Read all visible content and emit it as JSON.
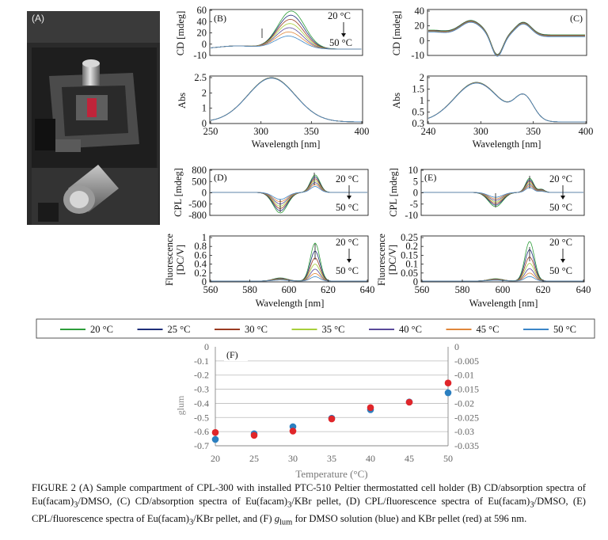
{
  "photo": {
    "label": "(A)"
  },
  "panels": {
    "B": {
      "label": "(B)",
      "cd_ylabel": "CD [mdeg]",
      "abs_ylabel": "Abs",
      "xlabel": "Wavelength [nm]",
      "cd_ticks": [
        "60",
        "40",
        "20",
        "0",
        "-10"
      ],
      "abs_ticks": [
        "2.5",
        "2",
        "1",
        "0"
      ],
      "x_ticks": [
        "250",
        "300",
        "350",
        "400"
      ],
      "temp_top": "20 °C",
      "temp_bottom": "50 °C"
    },
    "C": {
      "label": "(C)",
      "cd_ylabel": "CD [mdeg]",
      "abs_ylabel": "Abs",
      "xlabel": "Wavelength [nm]",
      "cd_ticks": [
        "40",
        "20",
        "0",
        "-10"
      ],
      "abs_ticks": [
        "2",
        "1.5",
        "1",
        "0.5",
        "0.3"
      ],
      "x_ticks": [
        "240",
        "300",
        "350",
        "400"
      ]
    },
    "D": {
      "label": "(D)",
      "cpl_ylabel": "CPL [mdeg]",
      "fl_ylabel_1": "Fluorescence",
      "fl_ylabel_2": "[DC/V]",
      "xlabel": "Wavelength [nm]",
      "cpl_ticks": [
        "800",
        "500",
        "0",
        "-500",
        "-800"
      ],
      "fl_ticks": [
        "1",
        "0.8",
        "0.6",
        "0.4",
        "0.2",
        "0"
      ],
      "x_ticks": [
        "560",
        "580",
        "600",
        "620",
        "640"
      ],
      "temp_top": "20 °C",
      "temp_bottom": "50 °C"
    },
    "E": {
      "label": "(E)",
      "cpl_ylabel": "CPL [mdeg]",
      "fl_ylabel_1": "Fluorescence",
      "fl_ylabel_2": "[DC/V]",
      "xlabel": "Wavelength [nm]",
      "cpl_ticks": [
        "10",
        "5",
        "0",
        "-5",
        "-10"
      ],
      "fl_ticks": [
        "0.25",
        "0.2",
        "0.15",
        "0.1",
        "0.05",
        "0"
      ],
      "x_ticks": [
        "560",
        "580",
        "600",
        "620",
        "640"
      ],
      "temp_top": "20 °C",
      "temp_bottom": "50 °C"
    }
  },
  "legend": [
    {
      "label": "20 °C",
      "color": "#2e9e3a"
    },
    {
      "label": "25 °C",
      "color": "#1f2f7a"
    },
    {
      "label": "30 °C",
      "color": "#9a3b22"
    },
    {
      "label": "35 °C",
      "color": "#a8cf3c"
    },
    {
      "label": "40 °C",
      "color": "#5a4a9a"
    },
    {
      "label": "45 °C",
      "color": "#e0873a"
    },
    {
      "label": "50 °C",
      "color": "#3b86c8"
    }
  ],
  "chart_data": {
    "type": "scatter",
    "label": "(F)",
    "xlabel": "Temperature (°C)",
    "ylabel": "glum",
    "x": [
      20,
      25,
      30,
      35,
      40,
      45,
      50
    ],
    "xlim": [
      20,
      50
    ],
    "ylim_left": [
      -0.7,
      0
    ],
    "ylim_right": [
      -0.035,
      0
    ],
    "x_ticks": [
      "20",
      "25",
      "30",
      "35",
      "40",
      "45",
      "50"
    ],
    "left_ticks": [
      "0",
      "-0.1",
      "-0.2",
      "-0.3",
      "-0.4",
      "-0.5",
      "-0.6",
      "-0.7"
    ],
    "right_ticks": [
      "0",
      "-0.005",
      "-0.01",
      "-0.015",
      "-0.02",
      "-0.025",
      "-0.03",
      "-0.035"
    ],
    "grid": true,
    "series": [
      {
        "axis": "left",
        "color": "#2b7fc0",
        "values": [
          -0.655,
          -0.615,
          -0.565,
          -0.505,
          -0.445,
          -0.39,
          -0.325
        ]
      },
      {
        "axis": "right",
        "color": "#e0262a",
        "values": [
          -0.0303,
          -0.0313,
          -0.0298,
          -0.0255,
          -0.0215,
          -0.0196,
          -0.0128
        ]
      }
    ]
  },
  "caption": {
    "text_1": "FIGURE 2 (A) Sample compartment of CPL-300 with installed PTC-510 Peltier thermostatted cell holder (B) CD/absorption spectra of Eu(facam)",
    "sub3a": "3",
    "text_2": "/DMSO, (C) CD/absorption spectra of Eu(facam)",
    "sub3b": "3",
    "text_3": "/KBr pellet, (D) CPL/fluorescence spectra of Eu(facam)",
    "sub3c": "3",
    "text_4": "/DMSO, (E) CPL/fluorescence spectra of Eu(facam)",
    "sub3d": "3",
    "text_5": "/KBr pellet, and (F) ",
    "g_italic": "g",
    "g_sub": "lum",
    "text_6": " for DMSO solution (blue) and KBr pellet (red) at 596 nm."
  }
}
